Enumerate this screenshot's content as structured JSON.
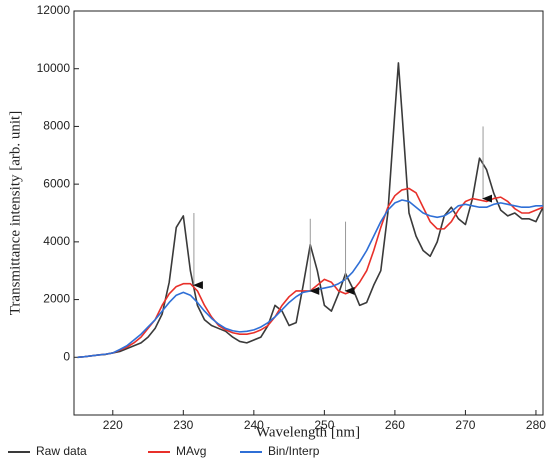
{
  "chart_data": {
    "type": "line",
    "x_label": "Wavelength [nm]",
    "y_label": "Transmittance intensity [arb. unit]",
    "x": [
      215,
      216,
      217,
      218,
      219,
      220,
      221,
      222,
      223,
      224,
      225,
      226,
      227,
      228,
      229,
      230,
      231,
      232,
      233,
      234,
      235,
      236,
      237,
      238,
      239,
      240,
      241,
      242,
      243,
      244,
      245,
      246,
      247,
      248,
      249,
      250,
      251,
      252,
      253,
      254,
      255,
      256,
      257,
      258,
      259,
      260,
      260.5,
      261,
      262,
      263,
      264,
      265,
      266,
      267,
      268,
      269,
      270,
      271,
      272,
      273,
      274,
      275,
      276,
      277,
      278,
      279,
      280,
      281
    ],
    "series": [
      {
        "name": "Raw data",
        "color": "#3a3a3a",
        "values": [
          0,
          20,
          50,
          80,
          100,
          150,
          200,
          300,
          400,
          500,
          700,
          1000,
          1500,
          2600,
          4500,
          4900,
          3000,
          1800,
          1300,
          1100,
          1000,
          900,
          700,
          550,
          500,
          600,
          700,
          1100,
          1800,
          1600,
          1100,
          1200,
          2500,
          3900,
          3000,
          1800,
          1600,
          2200,
          2900,
          2400,
          1800,
          1900,
          2500,
          3000,
          5000,
          8500,
          10200,
          8500,
          5000,
          4200,
          3700,
          3500,
          4000,
          4900,
          5200,
          4800,
          4600,
          5500,
          6900,
          6500,
          5700,
          5100,
          4900,
          5000,
          4800,
          4800,
          4700,
          5200
        ]
      },
      {
        "name": "MAvg",
        "color": "#e8302a",
        "values": [
          0,
          20,
          50,
          80,
          110,
          150,
          250,
          350,
          500,
          700,
          1000,
          1300,
          1800,
          2200,
          2450,
          2550,
          2550,
          2300,
          1800,
          1400,
          1100,
          950,
          850,
          800,
          800,
          850,
          950,
          1100,
          1400,
          1800,
          2100,
          2300,
          2300,
          2300,
          2500,
          2700,
          2600,
          2300,
          2200,
          2300,
          2600,
          3000,
          3700,
          4500,
          5200,
          5600,
          5700,
          5800,
          5850,
          5700,
          5200,
          4700,
          4450,
          4450,
          4700,
          5100,
          5400,
          5500,
          5450,
          5400,
          5500,
          5550,
          5400,
          5150,
          5000,
          5000,
          5100,
          5200
        ]
      },
      {
        "name": "Bin/Interp",
        "color": "#2f6fd6",
        "values": [
          0,
          20,
          50,
          80,
          110,
          150,
          270,
          400,
          600,
          800,
          1050,
          1300,
          1600,
          1900,
          2150,
          2250,
          2150,
          1900,
          1600,
          1350,
          1150,
          1000,
          920,
          880,
          900,
          950,
          1050,
          1200,
          1400,
          1650,
          1900,
          2100,
          2250,
          2300,
          2350,
          2400,
          2450,
          2550,
          2700,
          2950,
          3300,
          3700,
          4200,
          4700,
          5100,
          5350,
          5400,
          5450,
          5400,
          5200,
          5000,
          4900,
          4850,
          4900,
          5050,
          5250,
          5300,
          5250,
          5200,
          5200,
          5300,
          5350,
          5300,
          5250,
          5200,
          5200,
          5250,
          5250
        ]
      }
    ],
    "arrows": [
      {
        "x": 231.5,
        "from": 5000,
        "to": 2500
      },
      {
        "x": 248,
        "from": 4800,
        "to": 2300
      },
      {
        "x": 253,
        "from": 4700,
        "to": 2300
      },
      {
        "x": 272.5,
        "from": 8000,
        "to": 5500
      }
    ],
    "xlim": [
      214.5,
      281
    ],
    "ylim": [
      -2000,
      12000
    ],
    "xticks": [
      220,
      230,
      240,
      250,
      260,
      270,
      280
    ],
    "yticks": [
      0,
      2000,
      4000,
      6000,
      8000,
      10000,
      12000
    ],
    "grid": false,
    "legend": "bottom"
  }
}
